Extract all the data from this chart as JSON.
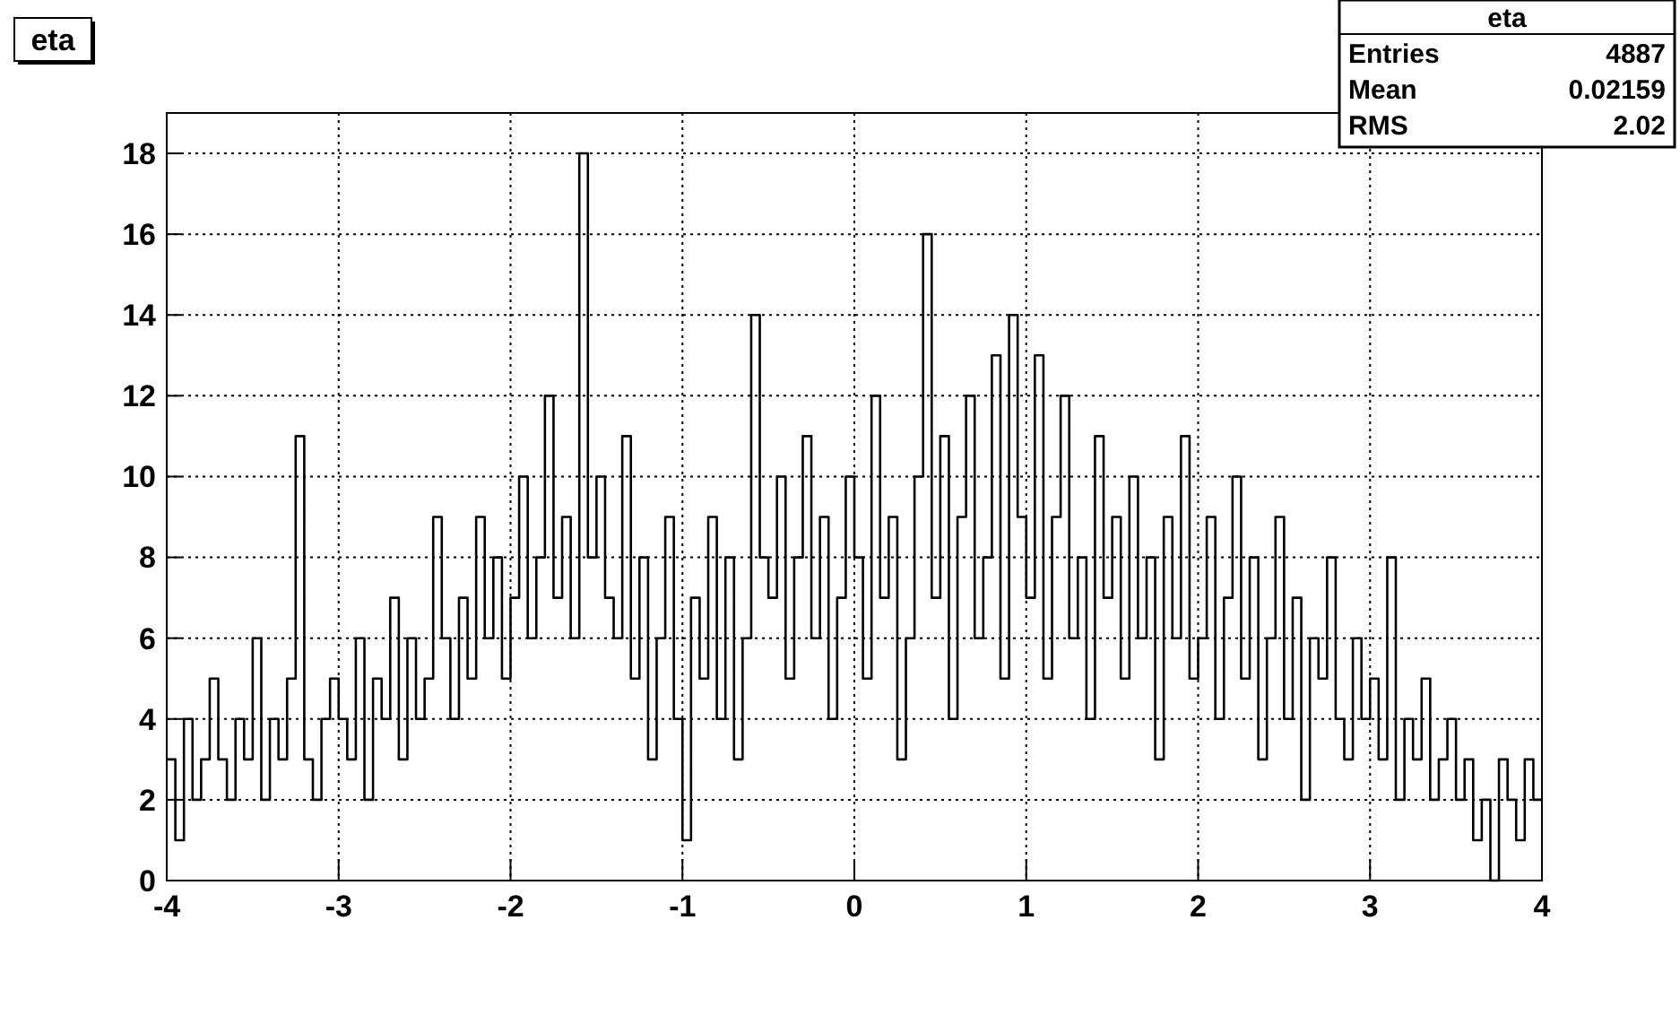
{
  "chart_data": {
    "type": "step",
    "title": "eta",
    "x": [
      -4,
      -3.95,
      -3.9,
      -3.85,
      -3.8,
      -3.75,
      -3.7,
      -3.65,
      -3.6,
      -3.55,
      -3.5,
      -3.45,
      -3.4,
      -3.35,
      -3.3,
      -3.25,
      -3.2,
      -3.15,
      -3.1,
      -3.05,
      -3,
      -2.95,
      -2.9,
      -2.85,
      -2.8,
      -2.75,
      -2.7,
      -2.65,
      -2.6,
      -2.55,
      -2.5,
      -2.45,
      -2.4,
      -2.35,
      -2.3,
      -2.25,
      -2.2,
      -2.15,
      -2.1,
      -2.05,
      -2,
      -1.95,
      -1.9,
      -1.85,
      -1.8,
      -1.75,
      -1.7,
      -1.65,
      -1.6,
      -1.55,
      -1.5,
      -1.45,
      -1.4,
      -1.35,
      -1.3,
      -1.25,
      -1.2,
      -1.15,
      -1.1,
      -1.05,
      -1,
      -0.95,
      -0.9,
      -0.85,
      -0.8,
      -0.75,
      -0.7,
      -0.65,
      -0.6,
      -0.55,
      -0.5,
      -0.45,
      -0.4,
      -0.35,
      -0.3,
      -0.25,
      -0.2,
      -0.15,
      -0.1,
      -0.05,
      0,
      0.05,
      0.1,
      0.15,
      0.2,
      0.25,
      0.3,
      0.35,
      0.4,
      0.45,
      0.5,
      0.55,
      0.6,
      0.65,
      0.7,
      0.75,
      0.8,
      0.85,
      0.9,
      0.95,
      1,
      1.05,
      1.1,
      1.15,
      1.2,
      1.25,
      1.3,
      1.35,
      1.4,
      1.45,
      1.5,
      1.55,
      1.6,
      1.65,
      1.7,
      1.75,
      1.8,
      1.85,
      1.9,
      1.95,
      2,
      2.05,
      2.1,
      2.15,
      2.2,
      2.25,
      2.3,
      2.35,
      2.4,
      2.45,
      2.5,
      2.55,
      2.6,
      2.65,
      2.7,
      2.75,
      2.8,
      2.85,
      2.9,
      2.95,
      3,
      3.05,
      3.1,
      3.15,
      3.2,
      3.25,
      3.3,
      3.35,
      3.4,
      3.45,
      3.5,
      3.55,
      3.6,
      3.65,
      3.7,
      3.75,
      3.8,
      3.85,
      3.9,
      3.95,
      4
    ],
    "values": [
      3,
      1,
      4,
      2,
      3,
      5,
      3,
      2,
      4,
      3,
      6,
      2,
      4,
      3,
      5,
      11,
      3,
      2,
      4,
      5,
      4,
      3,
      6,
      2,
      5,
      4,
      7,
      3,
      6,
      4,
      5,
      9,
      6,
      4,
      7,
      5,
      9,
      6,
      8,
      5,
      7,
      10,
      6,
      8,
      12,
      7,
      9,
      6,
      18,
      8,
      10,
      7,
      6,
      11,
      5,
      8,
      3,
      6,
      9,
      4,
      1,
      7,
      5,
      9,
      4,
      8,
      3,
      6,
      14,
      8,
      7,
      10,
      5,
      8,
      11,
      6,
      9,
      4,
      7,
      10,
      8,
      5,
      12,
      7,
      9,
      3,
      6,
      10,
      16,
      7,
      11,
      4,
      9,
      12,
      6,
      8,
      13,
      5,
      14,
      9,
      7,
      13,
      5,
      9,
      12,
      6,
      8,
      4,
      11,
      7,
      9,
      5,
      10,
      6,
      8,
      3,
      9,
      6,
      11,
      5,
      6,
      9,
      4,
      7,
      10,
      5,
      8,
      3,
      6,
      9,
      4,
      7,
      2,
      6,
      5,
      8,
      4,
      3,
      6,
      4,
      5,
      3,
      8,
      2,
      4,
      3,
      5,
      2,
      3,
      4,
      2,
      3,
      1,
      2,
      0,
      3,
      2,
      1,
      3,
      2,
      2
    ],
    "color": "#000000",
    "xlim": [
      -4,
      4
    ],
    "xticks": [
      -4,
      -3,
      -2,
      -1,
      0,
      1,
      2,
      3,
      4
    ],
    "ylim": [
      0,
      19
    ],
    "yticks": [
      0,
      2,
      4,
      6,
      8,
      10,
      12,
      14,
      16,
      18
    ],
    "grid": true,
    "annotations": [
      "eta",
      "Entries",
      "4887",
      "Mean",
      "0.02159",
      "RMS",
      "2.02"
    ]
  }
}
